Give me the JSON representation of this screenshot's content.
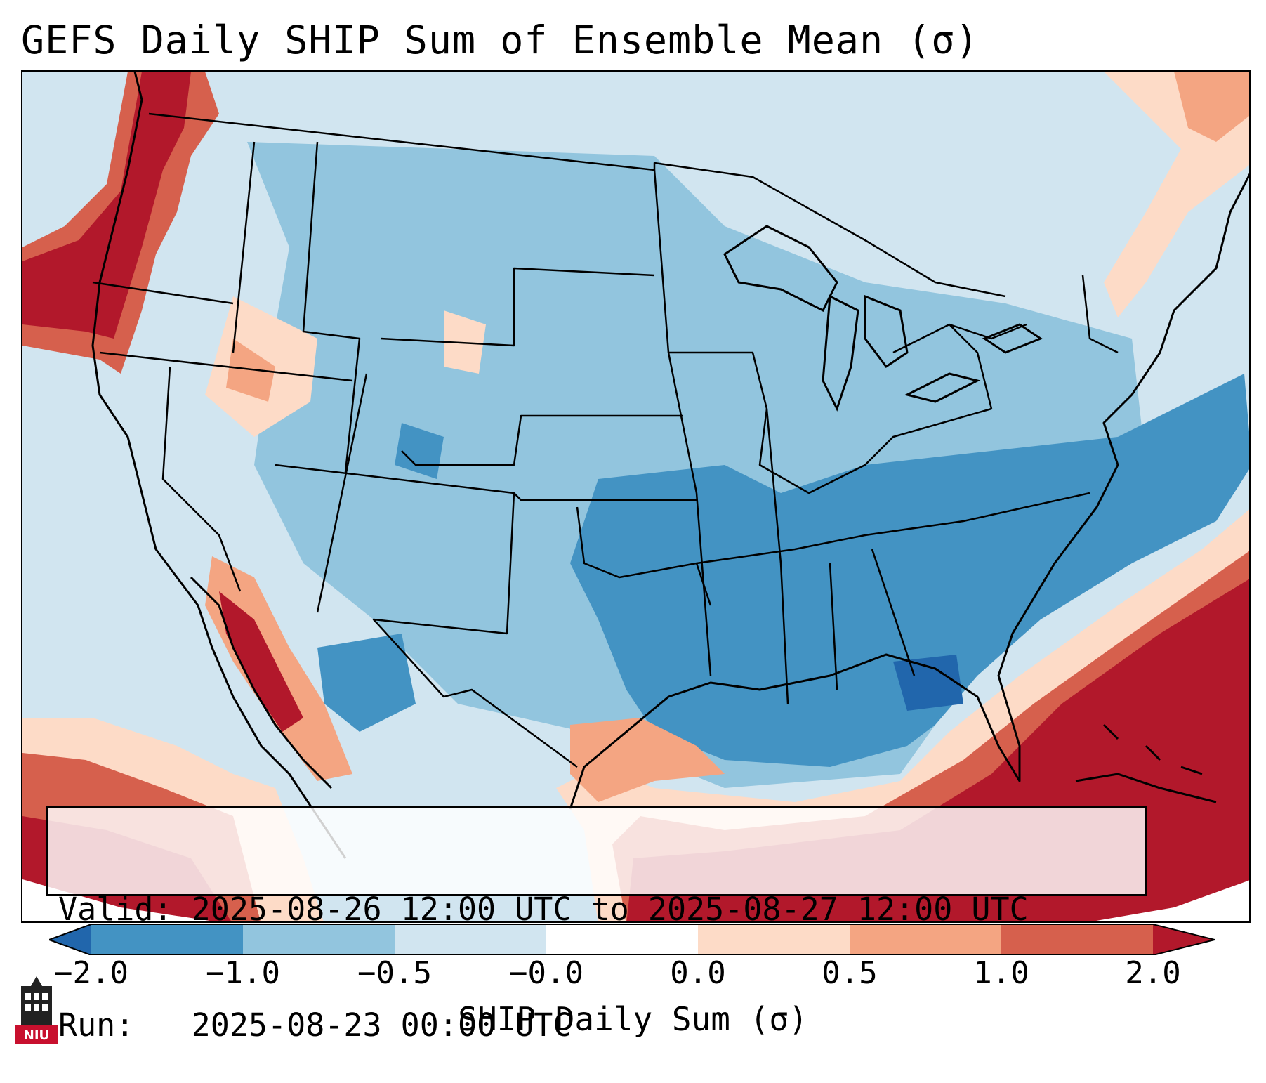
{
  "title": "GEFS Daily SHIP Sum of Ensemble Mean (σ)",
  "info": {
    "valid": "Valid: 2025-08-26 12:00 UTC to 2025-08-27 12:00 UTC",
    "run": "Run:   2025-08-23 00:00 UTC"
  },
  "colorbar": {
    "label": "SHIP Daily Sum (σ)",
    "ticks": [
      "−2.0",
      "−1.0",
      "−0.5",
      "−0.0",
      "0.0",
      "0.5",
      "1.0",
      "2.0"
    ],
    "colors": [
      "#2166ac",
      "#4393c3",
      "#92c5de",
      "#d1e5f0",
      "#ffffff",
      "#fddbc7",
      "#f4a582",
      "#d6604d",
      "#b2182b"
    ]
  },
  "legend_colors": {
    "very_low": "#2166ac",
    "low": "#4393c3",
    "below": "#92c5de",
    "slightly_below": "#d1e5f0",
    "near_zero": "#ffffff",
    "slightly_above": "#fddbc7",
    "above": "#f4a582",
    "high": "#d6604d",
    "very_high": "#b2182b"
  },
  "logo": {
    "text": "NIU",
    "icon": "university-tower-icon"
  }
}
